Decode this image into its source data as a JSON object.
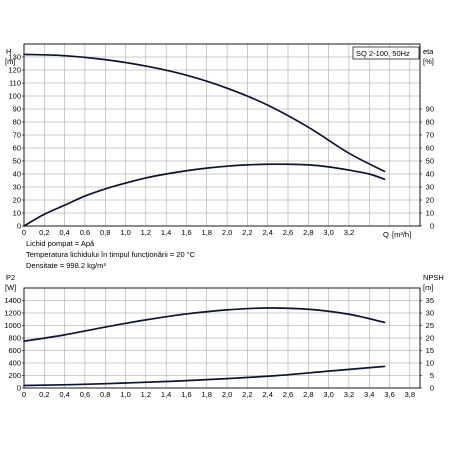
{
  "chart_data": [
    {
      "type": "line",
      "model_label": "SQ 2-100, 50Hz",
      "ylabel": "H",
      "ylabel_unit": "[m]",
      "y2label": "eta",
      "y2label_unit": "[%]",
      "xlabel": "Q",
      "xlabel_unit": "[m³/h]",
      "xlim": [
        0,
        3.9
      ],
      "ylim": [
        0,
        140
      ],
      "y2lim": [
        0,
        140
      ],
      "grid": true,
      "x_ticks": [
        "0",
        "0,2",
        "0,4",
        "0,6",
        "0,8",
        "1,0",
        "1,2",
        "1,4",
        "1,6",
        "1,8",
        "2,0",
        "2,2",
        "2,4",
        "2,6",
        "2,8",
        "3,0",
        "3,2"
      ],
      "y_ticks": [
        "0",
        "10",
        "20",
        "30",
        "40",
        "50",
        "60",
        "70",
        "80",
        "90",
        "100",
        "110",
        "120",
        "130"
      ],
      "y2_ticks": [
        "0",
        "10",
        "20",
        "30",
        "40",
        "50",
        "60",
        "70",
        "80",
        "90"
      ],
      "series": [
        {
          "axis": "left",
          "x": [
            0,
            0.4,
            0.8,
            1.2,
            1.6,
            2.0,
            2.4,
            2.8,
            3.2,
            3.55
          ],
          "y": [
            132,
            131,
            128,
            123,
            116,
            106,
            93,
            76,
            56,
            42
          ]
        },
        {
          "axis": "right",
          "x": [
            0,
            0.2,
            0.4,
            0.6,
            0.8,
            1.0,
            1.2,
            1.4,
            1.6,
            1.8,
            2.0,
            2.2,
            2.4,
            2.6,
            2.8,
            3.0,
            3.2,
            3.4,
            3.55
          ],
          "y": [
            0,
            9,
            16,
            23,
            28.5,
            33,
            37,
            40,
            42.5,
            44.5,
            46,
            47,
            47.5,
            47.5,
            47,
            45.5,
            43,
            40,
            36
          ]
        }
      ]
    },
    {
      "type": "line",
      "ylabel": "P2",
      "ylabel_unit": "[W]",
      "y2label": "NPSH",
      "y2label_unit": "[m]",
      "xlim": [
        0,
        3.9
      ],
      "ylim": [
        0,
        1600
      ],
      "y2lim": [
        0,
        40
      ],
      "grid": true,
      "x_ticks": [
        "0",
        "0,2",
        "0,4",
        "0,6",
        "0,8",
        "1,0",
        "1,2",
        "1,4",
        "1,6",
        "1,8",
        "2,0",
        "2,2",
        "2,4",
        "2,6",
        "2,8",
        "3,0",
        "3,2",
        "3,4",
        "3,6",
        "3,8"
      ],
      "y_ticks": [
        "0",
        "200",
        "400",
        "600",
        "800",
        "1000",
        "1200",
        "1400"
      ],
      "y2_ticks": [
        "0",
        "5",
        "10",
        "15",
        "20",
        "25",
        "30",
        "35"
      ],
      "series": [
        {
          "axis": "left",
          "x": [
            0,
            0.4,
            0.8,
            1.2,
            1.6,
            2.0,
            2.4,
            2.8,
            3.2,
            3.55
          ],
          "y": [
            750,
            850,
            975,
            1090,
            1185,
            1250,
            1280,
            1260,
            1180,
            1050
          ]
        },
        {
          "axis": "left",
          "x": [
            0,
            0.5,
            1.0,
            1.5,
            2.0,
            2.5,
            3.0,
            3.55
          ],
          "y": [
            40,
            55,
            80,
            110,
            150,
            200,
            270,
            345
          ]
        }
      ]
    }
  ],
  "fluid_info": [
    "Lichid pompat = Apă",
    "Temperatura lichidului în timpul funcţionării = 20 °C",
    "Densitate = 998.2 kg/m³"
  ]
}
